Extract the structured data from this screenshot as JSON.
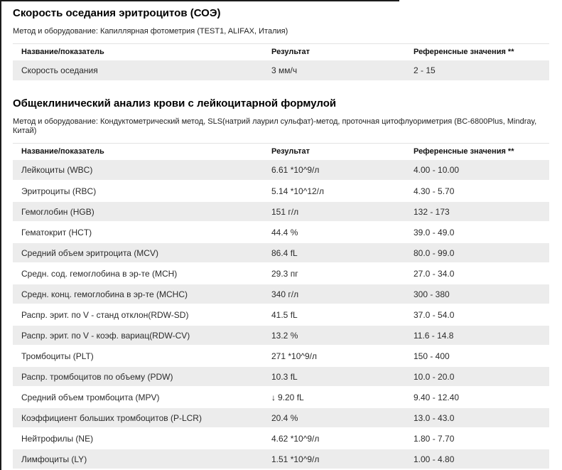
{
  "page": {
    "background_color": "#ffffff",
    "stripe_color": "#ececec",
    "edge_line_color": "#1b1b1b"
  },
  "icons": {
    "low_value_arrow": "↓"
  },
  "sections": [
    {
      "title": "Скорость оседания эритроцитов (СОЭ)",
      "method": "Метод и оборудование: Капиллярная фотометрия (TEST1, ALIFAX, Италия)",
      "columns": [
        "Название/показатель",
        "Результат",
        "Референсные значения **"
      ],
      "rows": [
        {
          "name": "Скорость оседания",
          "result": "3 мм/ч",
          "reference": "2 - 15",
          "flag": ""
        }
      ]
    },
    {
      "title": "Общеклинический анализ крови с лейкоцитарной формулой",
      "method": "Метод и оборудование: Кондуктометрический метод, SLS(натрий лаурил сульфат)-метод, проточная цитофлуориметрия (BC-6800Plus, Mindray, Китай)",
      "columns": [
        "Название/показатель",
        "Результат",
        "Референсные значения **"
      ],
      "rows": [
        {
          "name": "Лейкоциты (WBC)",
          "result": "6.61 *10^9/л",
          "reference": "4.00 - 10.00",
          "flag": ""
        },
        {
          "name": "Эритроциты (RBC)",
          "result": "5.14 *10^12/л",
          "reference": "4.30 - 5.70",
          "flag": ""
        },
        {
          "name": "Гемоглобин (HGB)",
          "result": "151 г/л",
          "reference": "132 - 173",
          "flag": ""
        },
        {
          "name": "Гематокрит (HCT)",
          "result": "44.4 %",
          "reference": "39.0 - 49.0",
          "flag": ""
        },
        {
          "name": "Средний объем эритроцита (MCV)",
          "result": "86.4 fL",
          "reference": "80.0 - 99.0",
          "flag": ""
        },
        {
          "name": "Средн. сод. гемоглобина в эр-те (MCH)",
          "result": "29.3 пг",
          "reference": "27.0 - 34.0",
          "flag": ""
        },
        {
          "name": "Средн. конц. гемоглобина в эр-те (MCHC)",
          "result": "340 г/л",
          "reference": "300 - 380",
          "flag": ""
        },
        {
          "name": "Распр. эрит. по V - станд отклон(RDW-SD)",
          "result": "41.5 fL",
          "reference": "37.0 - 54.0",
          "flag": ""
        },
        {
          "name": "Распр. эрит. по V - коэф. вариац(RDW-CV)",
          "result": "13.2 %",
          "reference": "11.6 - 14.8",
          "flag": ""
        },
        {
          "name": "Тромбоциты (PLT)",
          "result": "271 *10^9/л",
          "reference": "150 - 400",
          "flag": ""
        },
        {
          "name": "Распр. тромбоцитов по объему (PDW)",
          "result": "10.3 fL",
          "reference": "10.0 - 20.0",
          "flag": ""
        },
        {
          "name": "Средний объем тромбоцита (MPV)",
          "result": "9.20 fL",
          "reference": "9.40 - 12.40",
          "flag": "low"
        },
        {
          "name": "Коэффициент больших тромбоцитов (P-LCR)",
          "result": "20.4 %",
          "reference": "13.0 - 43.0",
          "flag": ""
        },
        {
          "name": "Нейтрофилы (NE)",
          "result": "4.62 *10^9/л",
          "reference": "1.80 - 7.70",
          "flag": ""
        },
        {
          "name": "Лимфоциты (LY)",
          "result": "1.51 *10^9/л",
          "reference": "1.00 - 4.80",
          "flag": ""
        }
      ]
    }
  ]
}
